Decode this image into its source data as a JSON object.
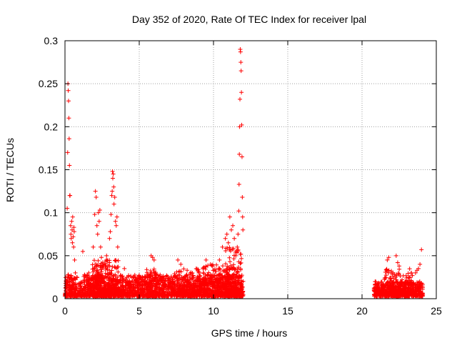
{
  "chart_data": {
    "type": "scatter",
    "title": "Day 352 of 2020, Rate Of TEC Index for receiver lpal",
    "xlabel": "GPS time / hours",
    "ylabel": "ROTI / TECUs",
    "xlim": [
      0,
      25
    ],
    "ylim": [
      0,
      0.3
    ],
    "xticks": [
      0,
      5,
      10,
      15,
      20,
      25
    ],
    "xtick_labels": [
      "0",
      "5",
      "10",
      "15",
      "20",
      "25"
    ],
    "yticks": [
      0,
      0.05,
      0.1,
      0.15,
      0.2,
      0.25,
      0.3
    ],
    "ytick_labels": [
      "0",
      "0.05",
      "0.1",
      "0.15",
      "0.2",
      "0.25",
      "0.3"
    ],
    "grid": true,
    "marker": "+",
    "color": "#ff0000",
    "series": [
      {
        "name": "ROTI",
        "points": [
          [
            0.05,
            0.013
          ],
          [
            0.1,
            0.02
          ],
          [
            0.15,
            0.105
          ],
          [
            0.18,
            0.17
          ],
          [
            0.2,
            0.25
          ],
          [
            0.22,
            0.242
          ],
          [
            0.24,
            0.23
          ],
          [
            0.26,
            0.21
          ],
          [
            0.28,
            0.186
          ],
          [
            0.3,
            0.155
          ],
          [
            0.32,
            0.12
          ],
          [
            0.34,
            0.12
          ],
          [
            0.38,
            0.085
          ],
          [
            0.4,
            0.075
          ],
          [
            0.42,
            0.07
          ],
          [
            0.45,
            0.09
          ],
          [
            0.48,
            0.08
          ],
          [
            0.5,
            0.065
          ],
          [
            0.52,
            0.095
          ],
          [
            0.55,
            0.072
          ],
          [
            0.58,
            0.06
          ],
          [
            0.6,
            0.083
          ],
          [
            0.62,
            0.078
          ],
          [
            0.65,
            0.045
          ],
          [
            0.7,
            0.03
          ],
          [
            1.2,
            0.055
          ],
          [
            1.6,
            0.03
          ],
          [
            1.9,
            0.06
          ],
          [
            2.0,
            0.098
          ],
          [
            2.05,
            0.125
          ],
          [
            2.1,
            0.118
          ],
          [
            2.15,
            0.085
          ],
          [
            2.2,
            0.075
          ],
          [
            2.25,
            0.1
          ],
          [
            2.3,
            0.09
          ],
          [
            2.35,
            0.103
          ],
          [
            2.4,
            0.06
          ],
          [
            2.45,
            0.048
          ],
          [
            2.8,
            0.05
          ],
          [
            3.0,
            0.07
          ],
          [
            3.05,
            0.078
          ],
          [
            3.1,
            0.098
          ],
          [
            3.15,
            0.12
          ],
          [
            3.18,
            0.125
          ],
          [
            3.2,
            0.148
          ],
          [
            3.22,
            0.14
          ],
          [
            3.25,
            0.145
          ],
          [
            3.28,
            0.13
          ],
          [
            3.3,
            0.11
          ],
          [
            3.35,
            0.118
          ],
          [
            3.4,
            0.09
          ],
          [
            3.45,
            0.085
          ],
          [
            3.5,
            0.095
          ],
          [
            3.55,
            0.06
          ],
          [
            4.0,
            0.035
          ],
          [
            5.8,
            0.05
          ],
          [
            5.9,
            0.048
          ],
          [
            6.0,
            0.045
          ],
          [
            7.6,
            0.045
          ],
          [
            7.8,
            0.04
          ],
          [
            9.5,
            0.045
          ],
          [
            9.8,
            0.04
          ],
          [
            10.4,
            0.045
          ],
          [
            10.6,
            0.06
          ],
          [
            10.8,
            0.07
          ],
          [
            10.9,
            0.075
          ],
          [
            11.0,
            0.065
          ],
          [
            11.1,
            0.095
          ],
          [
            11.2,
            0.08
          ],
          [
            11.3,
            0.085
          ],
          [
            11.4,
            0.07
          ],
          [
            11.5,
            0.05
          ],
          [
            11.6,
            0.06
          ],
          [
            11.65,
            0.075
          ],
          [
            11.7,
            0.102
          ],
          [
            11.72,
            0.133
          ],
          [
            11.74,
            0.168
          ],
          [
            11.76,
            0.2
          ],
          [
            11.78,
            0.232
          ],
          [
            11.8,
            0.29
          ],
          [
            11.82,
            0.287
          ],
          [
            11.84,
            0.275
          ],
          [
            11.86,
            0.265
          ],
          [
            11.88,
            0.24
          ],
          [
            11.9,
            0.202
          ],
          [
            11.92,
            0.165
          ],
          [
            11.94,
            0.118
          ],
          [
            11.96,
            0.095
          ],
          [
            11.98,
            0.08
          ],
          [
            21.7,
            0.045
          ],
          [
            21.8,
            0.048
          ],
          [
            22.3,
            0.05
          ],
          [
            22.4,
            0.042
          ],
          [
            22.5,
            0.038
          ],
          [
            23.6,
            0.03
          ],
          [
            23.7,
            0.033
          ],
          [
            23.8,
            0.035
          ],
          [
            23.9,
            0.04
          ],
          [
            24.0,
            0.057
          ]
        ],
        "dense_bands": [
          {
            "x": [
              0.0,
              12.0
            ],
            "y": [
              0.0,
              0.028
            ],
            "count": 2200
          },
          {
            "x": [
              1.8,
              3.6
            ],
            "y": [
              0.0,
              0.045
            ],
            "count": 300
          },
          {
            "x": [
              5.5,
              6.2
            ],
            "y": [
              0.0,
              0.04
            ],
            "count": 60
          },
          {
            "x": [
              7.3,
              9.3
            ],
            "y": [
              0.0,
              0.035
            ],
            "count": 120
          },
          {
            "x": [
              9.3,
              11.9
            ],
            "y": [
              0.0,
              0.04
            ],
            "count": 260
          },
          {
            "x": [
              10.8,
              11.9
            ],
            "y": [
              0.0,
              0.06
            ],
            "count": 120
          },
          {
            "x": [
              20.8,
              24.1
            ],
            "y": [
              0.0,
              0.02
            ],
            "count": 650
          },
          {
            "x": [
              21.5,
              23.5
            ],
            "y": [
              0.0,
              0.035
            ],
            "count": 170
          }
        ]
      }
    ]
  }
}
